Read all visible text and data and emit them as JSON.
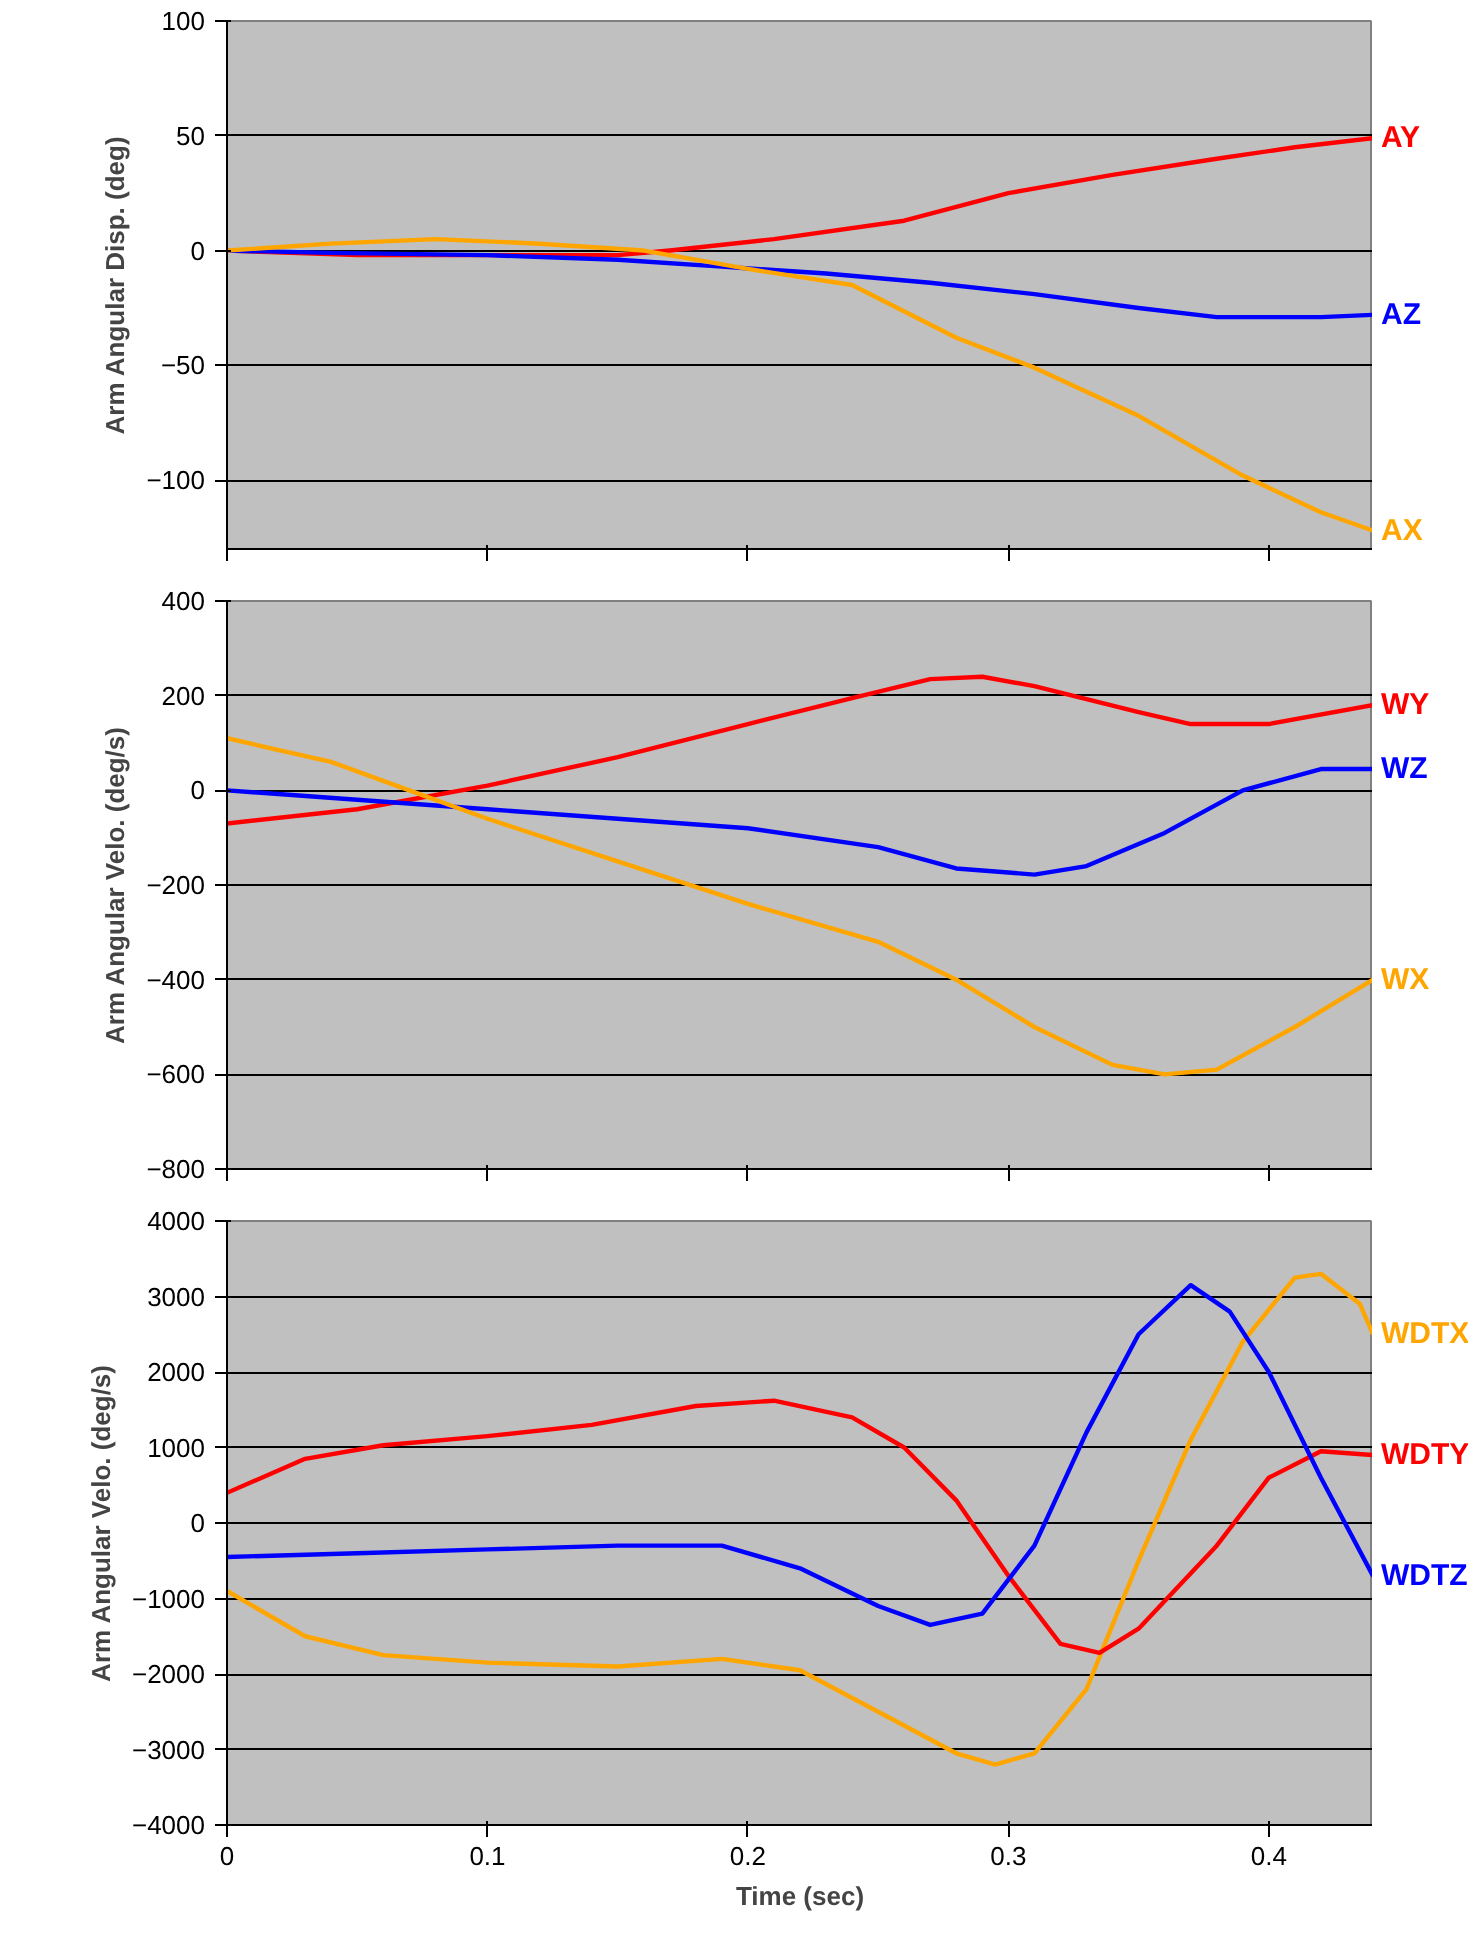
{
  "chart_data": [
    {
      "type": "line",
      "ylabel": "Arm Angular Disp. (deg)",
      "xlim": [
        0,
        0.44
      ],
      "ylim": [
        -130,
        100
      ],
      "xticks": [
        0,
        0.1,
        0.2,
        0.3,
        0.4
      ],
      "yticks": [
        -100,
        -50,
        0,
        50,
        100
      ],
      "grid": "y",
      "tick_labels": "y",
      "legend": false,
      "series": [
        {
          "name": "AY",
          "color": "#ff0000",
          "x": [
            0,
            0.05,
            0.1,
            0.15,
            0.17,
            0.21,
            0.26,
            0.3,
            0.34,
            0.38,
            0.41,
            0.44
          ],
          "values": [
            0,
            -2,
            -2,
            -2,
            0,
            5,
            13,
            25,
            33,
            40,
            45,
            49
          ]
        },
        {
          "name": "AZ",
          "color": "#0000ff",
          "x": [
            0,
            0.04,
            0.1,
            0.15,
            0.19,
            0.23,
            0.27,
            0.31,
            0.35,
            0.38,
            0.42,
            0.44
          ],
          "values": [
            0,
            -1,
            -2,
            -4,
            -7,
            -10,
            -14,
            -19,
            -25,
            -29,
            -29,
            -28
          ]
        },
        {
          "name": "AX",
          "color": "#ffa500",
          "x": [
            0,
            0.04,
            0.08,
            0.12,
            0.16,
            0.2,
            0.24,
            0.28,
            0.31,
            0.35,
            0.39,
            0.42,
            0.44
          ],
          "values": [
            0,
            3,
            5,
            3,
            0,
            -8,
            -15,
            -38,
            -51,
            -72,
            -98,
            -114,
            -122
          ]
        }
      ]
    },
    {
      "type": "line",
      "ylabel": "Arm Angular Velo. (deg/s)",
      "xlim": [
        0,
        0.44
      ],
      "ylim": [
        -800,
        400
      ],
      "xticks": [
        0,
        0.1,
        0.2,
        0.3,
        0.4
      ],
      "yticks": [
        -800,
        -600,
        -400,
        -200,
        0,
        200,
        400
      ],
      "grid": "y",
      "tick_labels": "y",
      "legend": false,
      "series": [
        {
          "name": "WY",
          "color": "#ff0000",
          "x": [
            0,
            0.05,
            0.1,
            0.15,
            0.2,
            0.24,
            0.27,
            0.29,
            0.31,
            0.35,
            0.37,
            0.4,
            0.44
          ],
          "values": [
            -70,
            -40,
            10,
            70,
            140,
            195,
            235,
            240,
            220,
            165,
            140,
            140,
            180
          ]
        },
        {
          "name": "WZ",
          "color": "#0000ff",
          "x": [
            0,
            0.05,
            0.1,
            0.15,
            0.2,
            0.25,
            0.28,
            0.31,
            0.33,
            0.36,
            0.39,
            0.42,
            0.44
          ],
          "values": [
            0,
            -20,
            -40,
            -60,
            -80,
            -120,
            -165,
            -178,
            -160,
            -90,
            0,
            45,
            45
          ]
        },
        {
          "name": "WX",
          "color": "#ffa500",
          "x": [
            0,
            0.04,
            0.07,
            0.1,
            0.15,
            0.2,
            0.25,
            0.28,
            0.31,
            0.34,
            0.36,
            0.38,
            0.41,
            0.44
          ],
          "values": [
            110,
            60,
            0,
            -60,
            -150,
            -240,
            -320,
            -400,
            -500,
            -580,
            -600,
            -590,
            -500,
            -400
          ]
        }
      ]
    },
    {
      "type": "line",
      "xlabel": "Time (sec)",
      "ylabel": "Arm Angular Velo. (deg/s)",
      "xlim": [
        0,
        0.44
      ],
      "ylim": [
        -4000,
        4000
      ],
      "xticks": [
        0,
        0.1,
        0.2,
        0.3,
        0.4
      ],
      "yticks": [
        -4000,
        -3000,
        -2000,
        -1000,
        0,
        1000,
        2000,
        3000,
        4000
      ],
      "grid": "y",
      "legend": false,
      "series": [
        {
          "name": "WDTX",
          "color": "#ffa500",
          "x": [
            0,
            0.03,
            0.06,
            0.1,
            0.15,
            0.19,
            0.22,
            0.25,
            0.28,
            0.295,
            0.31,
            0.33,
            0.35,
            0.37,
            0.39,
            0.41,
            0.42,
            0.435,
            0.44
          ],
          "values": [
            -900,
            -1500,
            -1750,
            -1850,
            -1900,
            -1800,
            -1950,
            -2500,
            -3050,
            -3200,
            -3050,
            -2200,
            -500,
            1100,
            2400,
            3250,
            3300,
            2900,
            2500
          ]
        },
        {
          "name": "WDTY",
          "color": "#ff0000",
          "x": [
            0,
            0.03,
            0.06,
            0.1,
            0.14,
            0.18,
            0.21,
            0.24,
            0.26,
            0.28,
            0.3,
            0.32,
            0.335,
            0.35,
            0.38,
            0.4,
            0.42,
            0.44
          ],
          "values": [
            400,
            850,
            1030,
            1150,
            1300,
            1550,
            1620,
            1400,
            1000,
            300,
            -700,
            -1600,
            -1720,
            -1400,
            -300,
            600,
            950,
            900
          ]
        },
        {
          "name": "WDTZ",
          "color": "#0000ff",
          "x": [
            0,
            0.05,
            0.1,
            0.15,
            0.19,
            0.22,
            0.25,
            0.27,
            0.29,
            0.31,
            0.33,
            0.35,
            0.37,
            0.385,
            0.4,
            0.42,
            0.44
          ],
          "values": [
            -450,
            -400,
            -350,
            -300,
            -300,
            -600,
            -1100,
            -1350,
            -1200,
            -300,
            1200,
            2500,
            3150,
            2800,
            2000,
            600,
            -700
          ]
        }
      ]
    }
  ]
}
